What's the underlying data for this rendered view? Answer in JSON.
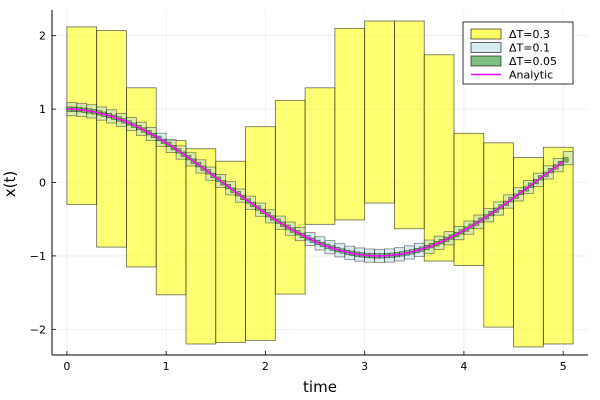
{
  "chart_data": {
    "type": "area",
    "title": "",
    "xlabel": "time",
    "ylabel": "x(t)",
    "xlim": [
      -0.15,
      5.25
    ],
    "ylim": [
      -2.35,
      2.35
    ],
    "xticks": [
      0,
      1,
      2,
      3,
      4,
      5
    ],
    "yticks": [
      -2,
      -1,
      0,
      1,
      2
    ],
    "xtick_labels": [
      "0",
      "1",
      "2",
      "3",
      "4",
      "5"
    ],
    "ytick_labels": [
      "−2",
      "−1",
      "0",
      "1",
      "2"
    ],
    "grid": true,
    "legend_position": "top-right",
    "series": [
      {
        "name": "ΔT=0.3",
        "kind": "bounds",
        "dt": 0.3,
        "color": "#ffff00",
        "t0": 0,
        "lower": [
          -0.3,
          -0.88,
          -1.15,
          -1.53,
          -2.2,
          -2.18,
          -2.15,
          -1.52,
          -0.57,
          -0.51,
          -0.28,
          -0.63,
          -1.07,
          -1.13,
          -1.97,
          -2.24,
          -2.2
        ],
        "upper": [
          2.12,
          2.07,
          1.29,
          0.57,
          0.46,
          0.29,
          0.76,
          1.12,
          1.29,
          2.1,
          2.2,
          2.2,
          1.74,
          0.67,
          0.54,
          0.34,
          0.48
        ]
      },
      {
        "name": "ΔT=0.1",
        "kind": "bounds",
        "dt": 0.1,
        "color": "#add8e6",
        "halfwidth": 0.09
      },
      {
        "name": "ΔT=0.05",
        "kind": "bounds",
        "dt": 0.05,
        "color": "#008000",
        "halfwidth": 0.03
      },
      {
        "name": "Analytic",
        "kind": "line",
        "function": "cos(t)",
        "x_range": [
          0,
          5
        ],
        "color": "#ff00ff"
      }
    ]
  }
}
